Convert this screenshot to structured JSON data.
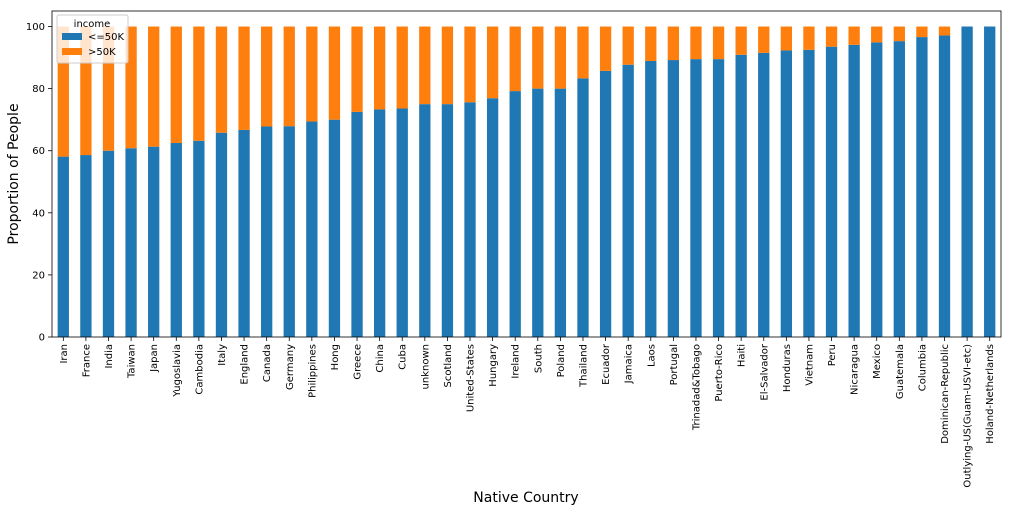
{
  "chart_data": {
    "type": "bar",
    "stacked": true,
    "xlabel": "Native Country",
    "ylabel": "Proportion of People",
    "ylim": [
      0,
      105
    ],
    "yticks": [
      0,
      20,
      40,
      60,
      80,
      100
    ],
    "categories": [
      "Iran",
      "France",
      "India",
      "Taiwan",
      "Japan",
      "Yugoslavia",
      "Cambodia",
      "Italy",
      "England",
      "Canada",
      "Germany",
      "Philippines",
      "Hong",
      "Greece",
      "China",
      "Cuba",
      "unknown",
      "Scotland",
      "United-States",
      "Hungary",
      "Ireland",
      "South",
      "Poland",
      "Thailand",
      "Ecuador",
      "Jamaica",
      "Laos",
      "Portugal",
      "Trinadad&Tobago",
      "Puerto-Rico",
      "Haiti",
      "El-Salvador",
      "Honduras",
      "Vietnam",
      "Peru",
      "Nicaragua",
      "Mexico",
      "Guatemala",
      "Columbia",
      "Dominican-Republic",
      "Outlying-US(Guam-USVI-etc)",
      "Holand-Netherlands"
    ],
    "legend": {
      "title": "income",
      "position": "upper-left"
    },
    "series": [
      {
        "name": "<=50K",
        "color": "#1f77b4",
        "values": [
          58.1,
          58.6,
          60.0,
          60.8,
          61.3,
          62.5,
          63.2,
          65.8,
          66.7,
          67.8,
          67.9,
          69.4,
          70.0,
          72.5,
          73.3,
          73.6,
          75.0,
          75.0,
          75.6,
          76.9,
          79.2,
          80.0,
          80.0,
          83.3,
          85.7,
          87.7,
          88.9,
          89.2,
          89.5,
          89.5,
          90.9,
          91.5,
          92.3,
          92.5,
          93.5,
          94.1,
          94.9,
          95.3,
          96.6,
          97.1,
          100.0,
          100.0
        ]
      },
      {
        "name": ">50K",
        "color": "#ff7f0e",
        "values": [
          41.9,
          41.4,
          40.0,
          39.2,
          38.7,
          37.5,
          36.8,
          34.2,
          33.3,
          32.2,
          32.1,
          30.6,
          30.0,
          27.5,
          26.7,
          26.4,
          25.0,
          25.0,
          24.4,
          23.1,
          20.8,
          20.0,
          20.0,
          16.7,
          14.3,
          12.3,
          11.1,
          10.8,
          10.5,
          10.5,
          9.1,
          8.5,
          7.7,
          7.5,
          6.5,
          5.9,
          5.1,
          4.7,
          3.4,
          2.9,
          0.0,
          0.0
        ]
      }
    ]
  }
}
